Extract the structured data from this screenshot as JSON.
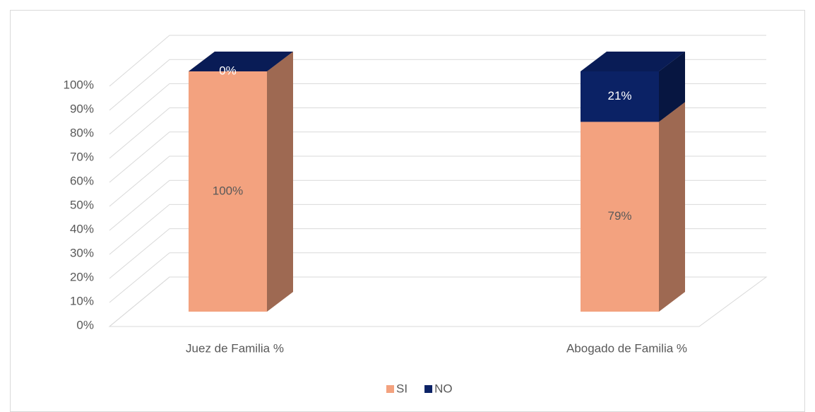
{
  "chart_data": {
    "type": "bar3d_stacked",
    "categories": [
      "Juez de Familia %",
      "Abogado de Familia %"
    ],
    "series": [
      {
        "name": "SI",
        "color": "#f3a27f",
        "values": [
          100,
          79
        ],
        "value_labels": [
          "100%",
          "79%"
        ]
      },
      {
        "name": "NO",
        "color": "#0b2265",
        "values": [
          0,
          21
        ],
        "value_labels": [
          "0%",
          "21%"
        ]
      }
    ],
    "ylim": [
      0,
      100
    ],
    "yticks": [
      {
        "value": 0,
        "label": "0%"
      },
      {
        "value": 10,
        "label": "10%"
      },
      {
        "value": 20,
        "label": "20%"
      },
      {
        "value": 30,
        "label": "30%"
      },
      {
        "value": 40,
        "label": "40%"
      },
      {
        "value": 50,
        "label": "50%"
      },
      {
        "value": 60,
        "label": "60%"
      },
      {
        "value": 70,
        "label": "70%"
      },
      {
        "value": 80,
        "label": "80%"
      },
      {
        "value": 90,
        "label": "90%"
      },
      {
        "value": 100,
        "label": "100%"
      }
    ],
    "grid": true,
    "legend": "bottom"
  }
}
